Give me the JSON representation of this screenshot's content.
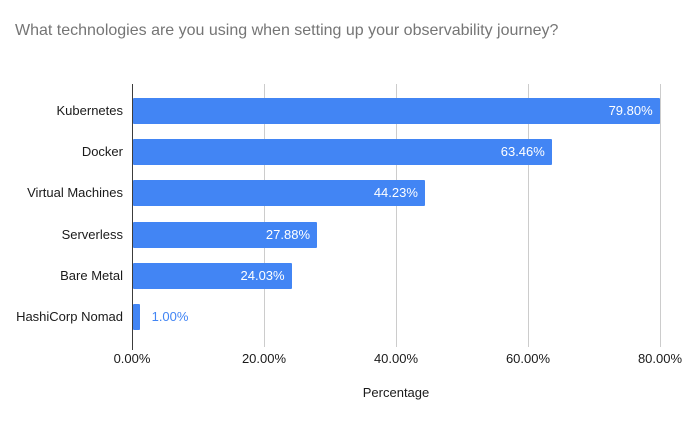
{
  "colors": {
    "bar": "#4285F4",
    "value_label_inside": "#ffffff",
    "value_label_outside": "#4285F4",
    "title_text": "#757575",
    "axis_line": "#3c3c3c",
    "gridline": "#cccccc",
    "tick_text": "#1a1a1a",
    "background": "#ffffff"
  },
  "chart_data": {
    "type": "bar",
    "orientation": "horizontal",
    "title": "What technologies are you using when setting up your observability journey?",
    "categories": [
      "Kubernetes",
      "Docker",
      "Virtual Machines",
      "Serverless",
      "Bare Metal",
      "HashiCorp Nomad"
    ],
    "values": [
      79.8,
      63.46,
      44.23,
      27.88,
      24.03,
      1.0
    ],
    "value_labels": [
      "79.80%",
      "63.46%",
      "44.23%",
      "27.88%",
      "24.03%",
      "1.00%"
    ],
    "xlabel": "Percentage",
    "ylabel": "",
    "x_ticks": [
      "0.00%",
      "20.00%",
      "40.00%",
      "60.00%",
      "80.00%"
    ],
    "x_tick_values": [
      0,
      20,
      40,
      60,
      80
    ],
    "xlim": [
      0,
      80
    ],
    "grid": true,
    "legend": "none"
  }
}
